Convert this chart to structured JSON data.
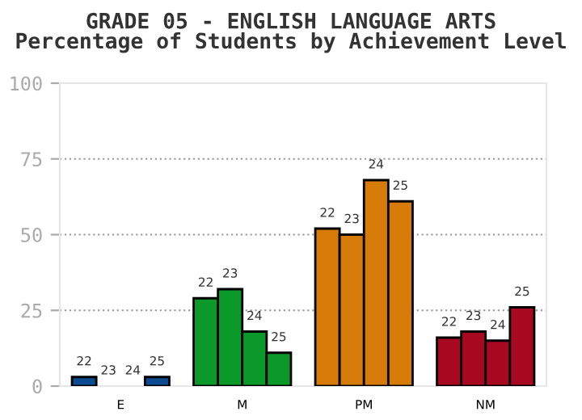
{
  "chart_data": {
    "type": "bar",
    "title": "GRADE 05 - ENGLISH LANGUAGE ARTS",
    "subtitle": "Percentage of Students by Achievement Level",
    "categories": [
      "E",
      "M",
      "PM",
      "NM"
    ],
    "series": [
      {
        "name": "22",
        "colors": [
          "#0c4a92",
          "#0b9a2a",
          "#d67a08",
          "#a80820"
        ],
        "values": [
          3,
          29,
          52,
          16
        ]
      },
      {
        "name": "23",
        "colors": [
          "#0c4a92",
          "#0b9a2a",
          "#d67a08",
          "#a80820"
        ],
        "values": [
          0,
          32,
          50,
          18
        ]
      },
      {
        "name": "24",
        "colors": [
          "#0c4a92",
          "#0b9a2a",
          "#d67a08",
          "#a80820"
        ],
        "values": [
          0,
          18,
          68,
          15
        ]
      },
      {
        "name": "25",
        "colors": [
          "#0c4a92",
          "#0b9a2a",
          "#d67a08",
          "#a80820"
        ],
        "values": [
          3,
          11,
          61,
          26
        ]
      }
    ],
    "ylim": [
      0,
      100
    ],
    "yticks": [
      0,
      25,
      50,
      75,
      100
    ],
    "grid": "y",
    "legend": false
  }
}
